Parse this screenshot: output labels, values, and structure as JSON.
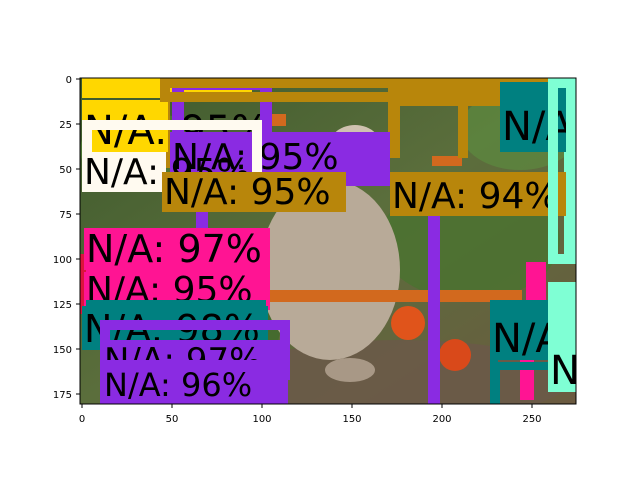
{
  "x_ticks": [
    "0",
    "50",
    "100",
    "150",
    "200",
    "250"
  ],
  "y_ticks": [
    "0",
    "25",
    "50",
    "75",
    "100",
    "125",
    "150",
    "175"
  ],
  "colors": {
    "gold": "#ffd700",
    "dark_gold": "#b8860b",
    "purple": "#8a2be2",
    "pink": "#ff1493",
    "teal": "#008080",
    "orange": "#d2691e",
    "aquamarine": "#7fffd4",
    "ivory": "#fffaf0",
    "crimson": "#dc143c"
  },
  "detections": [
    {
      "id": "det-1",
      "label": "N/A: 95%",
      "color": "#ffd700"
    },
    {
      "id": "det-2",
      "label": "N/A: 95%",
      "color": "#8a2be2"
    },
    {
      "id": "det-3",
      "label": "N/A: 95%",
      "color": "#fffaf0"
    },
    {
      "id": "det-4",
      "label": "N/A: 95%",
      "color": "#b8860b"
    },
    {
      "id": "det-5",
      "label": "N/A: 94%",
      "color": "#b8860b"
    },
    {
      "id": "det-6",
      "label": "N/A: 97%",
      "color": "#ff1493"
    },
    {
      "id": "det-7",
      "label": "N/A: 95%",
      "color": "#ff1493"
    },
    {
      "id": "det-8",
      "label": "N/A: 98%",
      "color": "#008080"
    },
    {
      "id": "det-9",
      "label": "N/A: 97%",
      "color": "#8a2be2"
    },
    {
      "id": "det-10",
      "label": "N/A: 96%",
      "color": "#8a2be2"
    },
    {
      "id": "det-11",
      "label": "N/A",
      "color": "#008080"
    },
    {
      "id": "det-12",
      "label": "N/A",
      "color": "#008080"
    },
    {
      "id": "det-13",
      "label": "N",
      "color": "#7fffd4"
    }
  ]
}
